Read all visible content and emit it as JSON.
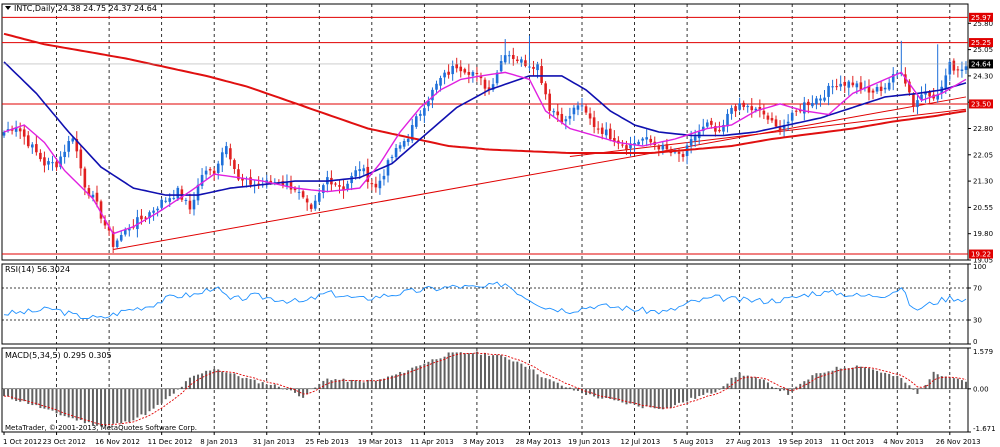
{
  "chart_data": {
    "type": "candlestick",
    "main": {
      "title": "INTC,Daily",
      "ohlc_text": "24.38 24.75 24.37 24.64",
      "current_price": "24.64",
      "y_ticks": [
        "25.80",
        "25.05",
        "24.30",
        "23.55",
        "22.80",
        "22.05",
        "21.30",
        "20.55",
        "19.80",
        "19.05"
      ],
      "ylim": [
        19.05,
        26.35
      ],
      "levels": [
        {
          "label": "25.97",
          "value": 25.97
        },
        {
          "label": "25.25",
          "value": 25.25
        },
        {
          "label": "23.50",
          "value": 23.5
        },
        {
          "label": "19.22",
          "value": 19.22
        }
      ],
      "trendlines": [
        {
          "x0": 27,
          "y0": 19.35,
          "x1": 238,
          "y1": 23.7
        },
        {
          "x0": 140,
          "y0": 22.0,
          "x1": 238,
          "y1": 23.35
        }
      ],
      "ma_fast": [
        [
          0,
          22.7
        ],
        [
          5,
          22.9
        ],
        [
          10,
          22.4
        ],
        [
          15,
          21.6
        ],
        [
          22,
          20.8
        ],
        [
          27,
          19.8
        ],
        [
          32,
          20.0
        ],
        [
          38,
          20.4
        ],
        [
          46,
          21.0
        ],
        [
          52,
          21.5
        ],
        [
          58,
          21.4
        ],
        [
          64,
          21.3
        ],
        [
          72,
          21.1
        ],
        [
          80,
          21.0
        ],
        [
          88,
          21.1
        ],
        [
          93,
          21.8
        ],
        [
          98,
          22.7
        ],
        [
          103,
          23.4
        ],
        [
          108,
          23.9
        ],
        [
          113,
          24.2
        ],
        [
          118,
          24.3
        ],
        [
          124,
          24.4
        ],
        [
          130,
          24.2
        ],
        [
          134,
          23.3
        ],
        [
          140,
          22.8
        ],
        [
          146,
          22.6
        ],
        [
          152,
          22.4
        ],
        [
          158,
          22.3
        ],
        [
          166,
          22.5
        ],
        [
          174,
          22.8
        ],
        [
          180,
          22.9
        ],
        [
          186,
          23.3
        ],
        [
          192,
          23.5
        ],
        [
          198,
          23.3
        ],
        [
          204,
          23.2
        ],
        [
          210,
          23.8
        ],
        [
          216,
          24.1
        ],
        [
          222,
          24.4
        ],
        [
          227,
          23.6
        ],
        [
          232,
          23.8
        ],
        [
          238,
          24.2
        ]
      ],
      "ma_mid": [
        [
          0,
          24.7
        ],
        [
          8,
          23.8
        ],
        [
          16,
          22.7
        ],
        [
          24,
          21.7
        ],
        [
          32,
          21.1
        ],
        [
          40,
          20.9
        ],
        [
          48,
          20.9
        ],
        [
          56,
          21.1
        ],
        [
          64,
          21.2
        ],
        [
          72,
          21.3
        ],
        [
          80,
          21.3
        ],
        [
          88,
          21.4
        ],
        [
          96,
          21.8
        ],
        [
          104,
          22.6
        ],
        [
          112,
          23.4
        ],
        [
          120,
          23.9
        ],
        [
          130,
          24.3
        ],
        [
          138,
          24.3
        ],
        [
          144,
          23.9
        ],
        [
          150,
          23.3
        ],
        [
          156,
          22.9
        ],
        [
          162,
          22.7
        ],
        [
          170,
          22.6
        ],
        [
          178,
          22.6
        ],
        [
          186,
          22.7
        ],
        [
          194,
          22.9
        ],
        [
          202,
          23.1
        ],
        [
          210,
          23.4
        ],
        [
          218,
          23.7
        ],
        [
          226,
          23.8
        ],
        [
          232,
          23.9
        ],
        [
          238,
          24.1
        ]
      ],
      "ma_slow": [
        [
          0,
          25.5
        ],
        [
          10,
          25.2
        ],
        [
          20,
          25.0
        ],
        [
          30,
          24.8
        ],
        [
          40,
          24.55
        ],
        [
          50,
          24.3
        ],
        [
          60,
          24.0
        ],
        [
          70,
          23.6
        ],
        [
          80,
          23.2
        ],
        [
          90,
          22.8
        ],
        [
          100,
          22.55
        ],
        [
          110,
          22.3
        ],
        [
          120,
          22.2
        ],
        [
          130,
          22.15
        ],
        [
          140,
          22.1
        ],
        [
          150,
          22.1
        ],
        [
          160,
          22.1
        ],
        [
          170,
          22.2
        ],
        [
          180,
          22.3
        ],
        [
          190,
          22.5
        ],
        [
          200,
          22.65
        ],
        [
          210,
          22.8
        ],
        [
          220,
          23.0
        ],
        [
          230,
          23.15
        ],
        [
          238,
          23.3
        ]
      ],
      "anchors": [
        [
          0,
          22.7
        ],
        [
          3,
          22.9
        ],
        [
          6,
          22.4
        ],
        [
          10,
          21.8
        ],
        [
          13,
          21.8
        ],
        [
          17,
          22.6
        ],
        [
          20,
          21.2
        ],
        [
          23,
          20.6
        ],
        [
          27,
          19.5
        ],
        [
          31,
          20.0
        ],
        [
          35,
          20.3
        ],
        [
          39,
          20.7
        ],
        [
          43,
          21.0
        ],
        [
          46,
          20.5
        ],
        [
          49,
          21.5
        ],
        [
          52,
          21.6
        ],
        [
          55,
          22.4
        ],
        [
          58,
          21.3
        ],
        [
          63,
          21.2
        ],
        [
          68,
          21.3
        ],
        [
          72,
          21.1
        ],
        [
          76,
          20.4
        ],
        [
          80,
          21.4
        ],
        [
          84,
          21.1
        ],
        [
          88,
          21.7
        ],
        [
          92,
          21.1
        ],
        [
          96,
          22.0
        ],
        [
          100,
          22.6
        ],
        [
          104,
          23.5
        ],
        [
          108,
          24.2
        ],
        [
          112,
          24.6
        ],
        [
          116,
          24.4
        ],
        [
          120,
          23.9
        ],
        [
          124,
          25.0
        ],
        [
          128,
          24.7
        ],
        [
          132,
          24.6
        ],
        [
          135,
          23.4
        ],
        [
          139,
          23.0
        ],
        [
          142,
          23.5
        ],
        [
          146,
          22.9
        ],
        [
          150,
          22.6
        ],
        [
          154,
          22.3
        ],
        [
          158,
          22.5
        ],
        [
          162,
          22.3
        ],
        [
          165,
          22.1
        ],
        [
          168,
          22.0
        ],
        [
          171,
          22.6
        ],
        [
          174,
          22.9
        ],
        [
          177,
          22.6
        ],
        [
          180,
          23.4
        ],
        [
          184,
          23.4
        ],
        [
          188,
          23.2
        ],
        [
          191,
          22.8
        ],
        [
          194,
          23.0
        ],
        [
          198,
          23.5
        ],
        [
          202,
          23.7
        ],
        [
          206,
          24.1
        ],
        [
          210,
          24.1
        ],
        [
          214,
          23.8
        ],
        [
          218,
          24.0
        ],
        [
          222,
          24.5
        ],
        [
          225,
          23.5
        ],
        [
          228,
          23.9
        ],
        [
          231,
          23.7
        ],
        [
          234,
          24.6
        ],
        [
          236,
          24.5
        ],
        [
          238,
          24.6
        ]
      ],
      "spikes": [
        [
          124,
          25.35
        ],
        [
          126,
          25.1
        ],
        [
          130,
          25.45
        ],
        [
          222,
          25.3
        ],
        [
          231,
          25.2
        ]
      ]
    },
    "rsi": {
      "title": "RSI(14) 56.3024",
      "y_ticks": [
        "100",
        "70",
        "30",
        "0"
      ],
      "levels": [
        70,
        30
      ],
      "ylim": [
        0,
        100
      ],
      "series": [
        [
          0,
          38
        ],
        [
          6,
          40
        ],
        [
          12,
          44
        ],
        [
          18,
          35
        ],
        [
          24,
          32
        ],
        [
          30,
          42
        ],
        [
          36,
          48
        ],
        [
          42,
          60
        ],
        [
          48,
          62
        ],
        [
          52,
          72
        ],
        [
          56,
          55
        ],
        [
          62,
          60
        ],
        [
          68,
          56
        ],
        [
          74,
          52
        ],
        [
          80,
          64
        ],
        [
          88,
          56
        ],
        [
          96,
          62
        ],
        [
          104,
          68
        ],
        [
          112,
          72
        ],
        [
          118,
          70
        ],
        [
          124,
          76
        ],
        [
          128,
          62
        ],
        [
          134,
          46
        ],
        [
          140,
          42
        ],
        [
          146,
          48
        ],
        [
          152,
          46
        ],
        [
          158,
          42
        ],
        [
          164,
          40
        ],
        [
          170,
          52
        ],
        [
          176,
          58
        ],
        [
          182,
          55
        ],
        [
          188,
          54
        ],
        [
          194,
          56
        ],
        [
          200,
          64
        ],
        [
          206,
          64
        ],
        [
          212,
          60
        ],
        [
          218,
          62
        ],
        [
          222,
          70
        ],
        [
          225,
          42
        ],
        [
          230,
          52
        ],
        [
          234,
          58
        ],
        [
          238,
          56
        ]
      ]
    },
    "macd": {
      "title": "MACD(5,34,5) 0.295 0.305",
      "y_ticks": [
        "1.579",
        "0.00",
        "-1.671"
      ],
      "ylim": [
        -1.671,
        1.579
      ],
      "histogram": [
        [
          0,
          -0.3
        ],
        [
          6,
          -0.55
        ],
        [
          12,
          -0.9
        ],
        [
          18,
          -1.2
        ],
        [
          24,
          -1.45
        ],
        [
          30,
          -1.3
        ],
        [
          36,
          -0.9
        ],
        [
          42,
          -0.2
        ],
        [
          46,
          0.4
        ],
        [
          52,
          0.8
        ],
        [
          56,
          0.6
        ],
        [
          62,
          0.3
        ],
        [
          68,
          0.1
        ],
        [
          74,
          -0.3
        ],
        [
          80,
          0.4
        ],
        [
          86,
          0.3
        ],
        [
          92,
          0.3
        ],
        [
          98,
          0.6
        ],
        [
          104,
          1.0
        ],
        [
          110,
          1.35
        ],
        [
          116,
          1.4
        ],
        [
          122,
          1.3
        ],
        [
          128,
          1.0
        ],
        [
          134,
          0.4
        ],
        [
          140,
          0.0
        ],
        [
          146,
          -0.3
        ],
        [
          152,
          -0.5
        ],
        [
          158,
          -0.7
        ],
        [
          164,
          -0.75
        ],
        [
          170,
          -0.4
        ],
        [
          176,
          -0.1
        ],
        [
          182,
          0.6
        ],
        [
          188,
          0.3
        ],
        [
          194,
          -0.2
        ],
        [
          200,
          0.5
        ],
        [
          206,
          0.8
        ],
        [
          212,
          0.9
        ],
        [
          218,
          0.6
        ],
        [
          222,
          0.4
        ],
        [
          226,
          -0.2
        ],
        [
          230,
          0.6
        ],
        [
          234,
          0.5
        ],
        [
          238,
          0.3
        ]
      ]
    },
    "x_labels": [
      "1 Oct 2012",
      "23 Oct 2012",
      "16 Nov 2012",
      "11 Dec 2012",
      "8 Jan 2013",
      "31 Jan 2013",
      "25 Feb 2013",
      "19 Mar 2013",
      "11 Apr 2013",
      "3 May 2013",
      "28 May 2013",
      "19 Jun 2013",
      "12 Jul 2013",
      "5 Aug 2013",
      "27 Aug 2013",
      "19 Sep 2013",
      "11 Oct 2013",
      "4 Nov 2013",
      "26 Nov 2013"
    ],
    "copyright": "MetaTrader, © 2001-2013, MetaQuotes Software Corp.",
    "colors": {
      "bull": "#1e6fd9",
      "bear": "#e02020",
      "ma_fast": "#e020e0",
      "ma_mid": "#1010b0",
      "ma_slow": "#e01010",
      "level": "#e00000",
      "rsi": "#1e90ff",
      "macd_signal": "#e00000",
      "hist": "#606060"
    }
  }
}
